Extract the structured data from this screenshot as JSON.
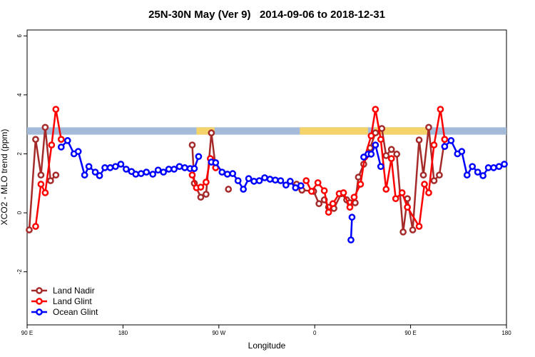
{
  "chart_data": {
    "type": "line",
    "title": "25N-30N May (Ver 9)   2014-09-06 to 2018-12-31",
    "x_label": "Longitude",
    "y_label": "XCO2 - MLO trend (ppm)",
    "xlim": [
      90,
      540
    ],
    "ylim": [
      -3.8,
      6.2
    ],
    "xticks": [
      {
        "value": 90,
        "label": "90 E"
      },
      180,
      {
        "value": 270,
        "label": "90 W"
      },
      {
        "value": 360,
        "label": "0"
      },
      {
        "value": 450,
        "label": "90 E"
      },
      {
        "value": 540,
        "label": "180"
      }
    ],
    "yticks": [
      -2,
      0,
      2,
      4,
      6
    ],
    "legend": "bottom-left",
    "mask": {
      "ylim": [
        2.65,
        2.9
      ],
      "color": "#a3bbd9",
      "highlight_color": "#f5d36b",
      "highlights": [
        [
          249,
          266
        ],
        [
          346,
          410
        ],
        [
          416,
          466
        ]
      ]
    },
    "series": [
      {
        "name": "Land Nadir",
        "color": "#a52a2a",
        "x": [
          92,
          98,
          103,
          107,
          112,
          117,
          180,
          245,
          247,
          253,
          258,
          263,
          267,
          273,
          279,
          300,
          343,
          348,
          359,
          364,
          369,
          373,
          378,
          385,
          390,
          393,
          398,
          401,
          406,
          412,
          417,
          423,
          427,
          432,
          437,
          443,
          447,
          452,
          458,
          462,
          467,
          472,
          477,
          482
        ],
        "values": [
          -0.58,
          2.49,
          1.28,
          2.9,
          1.09,
          1.28,
          null,
          2.3,
          1.0,
          0.53,
          0.63,
          2.71,
          1.53,
          null,
          0.8,
          null,
          0.97,
          0.77,
          0.73,
          0.31,
          0.44,
          0.19,
          0.15,
          0.65,
          0.44,
          0.34,
          0.34,
          1.21,
          1.65,
          2.2,
          2.71,
          2.86,
          1.94,
          2.15,
          1.99,
          -0.65,
          0.48,
          -0.58,
          2.47,
          1.28,
          2.9,
          1.09,
          1.28,
          2.49
        ]
      },
      {
        "name": "Land Glint",
        "color": "#ff0000",
        "x": [
          98,
          103,
          107,
          113,
          117,
          122,
          180,
          245,
          249,
          253,
          258,
          262,
          267,
          300,
          352,
          357,
          363,
          369,
          373,
          377,
          383,
          387,
          393,
          397,
          403,
          407,
          413,
          417,
          422,
          427,
          432,
          436,
          442,
          447,
          458,
          463,
          467,
          472,
          478,
          482
        ],
        "values": [
          -0.46,
          0.97,
          0.68,
          2.3,
          3.51,
          2.49,
          null,
          1.28,
          0.85,
          0.87,
          1.04,
          1.84,
          1.53,
          null,
          1.09,
          0.73,
          1.02,
          0.75,
          0.02,
          0.31,
          0.65,
          0.68,
          0.19,
          0.53,
          0.97,
          1.89,
          2.61,
          3.51,
          2.49,
          0.8,
          1.84,
          0.48,
          0.68,
          0.19,
          -0.46,
          0.97,
          0.68,
          2.3,
          3.51,
          2.49
        ]
      },
      {
        "name": "Ocean Glint",
        "color": "#0000ff",
        "x": [
          122,
          128,
          134,
          138,
          144,
          148,
          154,
          158,
          163,
          168,
          173,
          178,
          183,
          188,
          192,
          197,
          202,
          208,
          213,
          218,
          223,
          228,
          233,
          238,
          243,
          247,
          251,
          257,
          263,
          267,
          273,
          278,
          283,
          288,
          293,
          298,
          303,
          308,
          313,
          318,
          323,
          328,
          333,
          337,
          342,
          347,
          370,
          394,
          395,
          400,
          406,
          410,
          413,
          417,
          422,
          450,
          482,
          488,
          494,
          498,
          503,
          508,
          513,
          518,
          523,
          528,
          533,
          538
        ],
        "values": [
          2.23,
          2.45,
          2.0,
          2.08,
          1.28,
          1.57,
          1.38,
          1.26,
          1.53,
          1.53,
          1.57,
          1.65,
          1.48,
          1.4,
          1.31,
          1.33,
          1.38,
          1.31,
          1.45,
          1.38,
          1.48,
          1.48,
          1.57,
          1.53,
          1.5,
          1.5,
          1.91,
          null,
          1.72,
          1.7,
          1.38,
          1.31,
          1.33,
          1.09,
          0.8,
          1.16,
          1.07,
          1.09,
          1.19,
          1.14,
          1.11,
          1.09,
          0.94,
          1.07,
          0.85,
          0.92,
          null,
          -0.92,
          -0.15,
          null,
          1.89,
          1.99,
          1.99,
          2.3,
          1.57,
          null,
          2.25,
          2.45,
          2.0,
          2.08,
          1.28,
          1.57,
          1.38,
          1.26,
          1.53,
          1.53,
          1.57,
          1.65
        ]
      }
    ]
  }
}
